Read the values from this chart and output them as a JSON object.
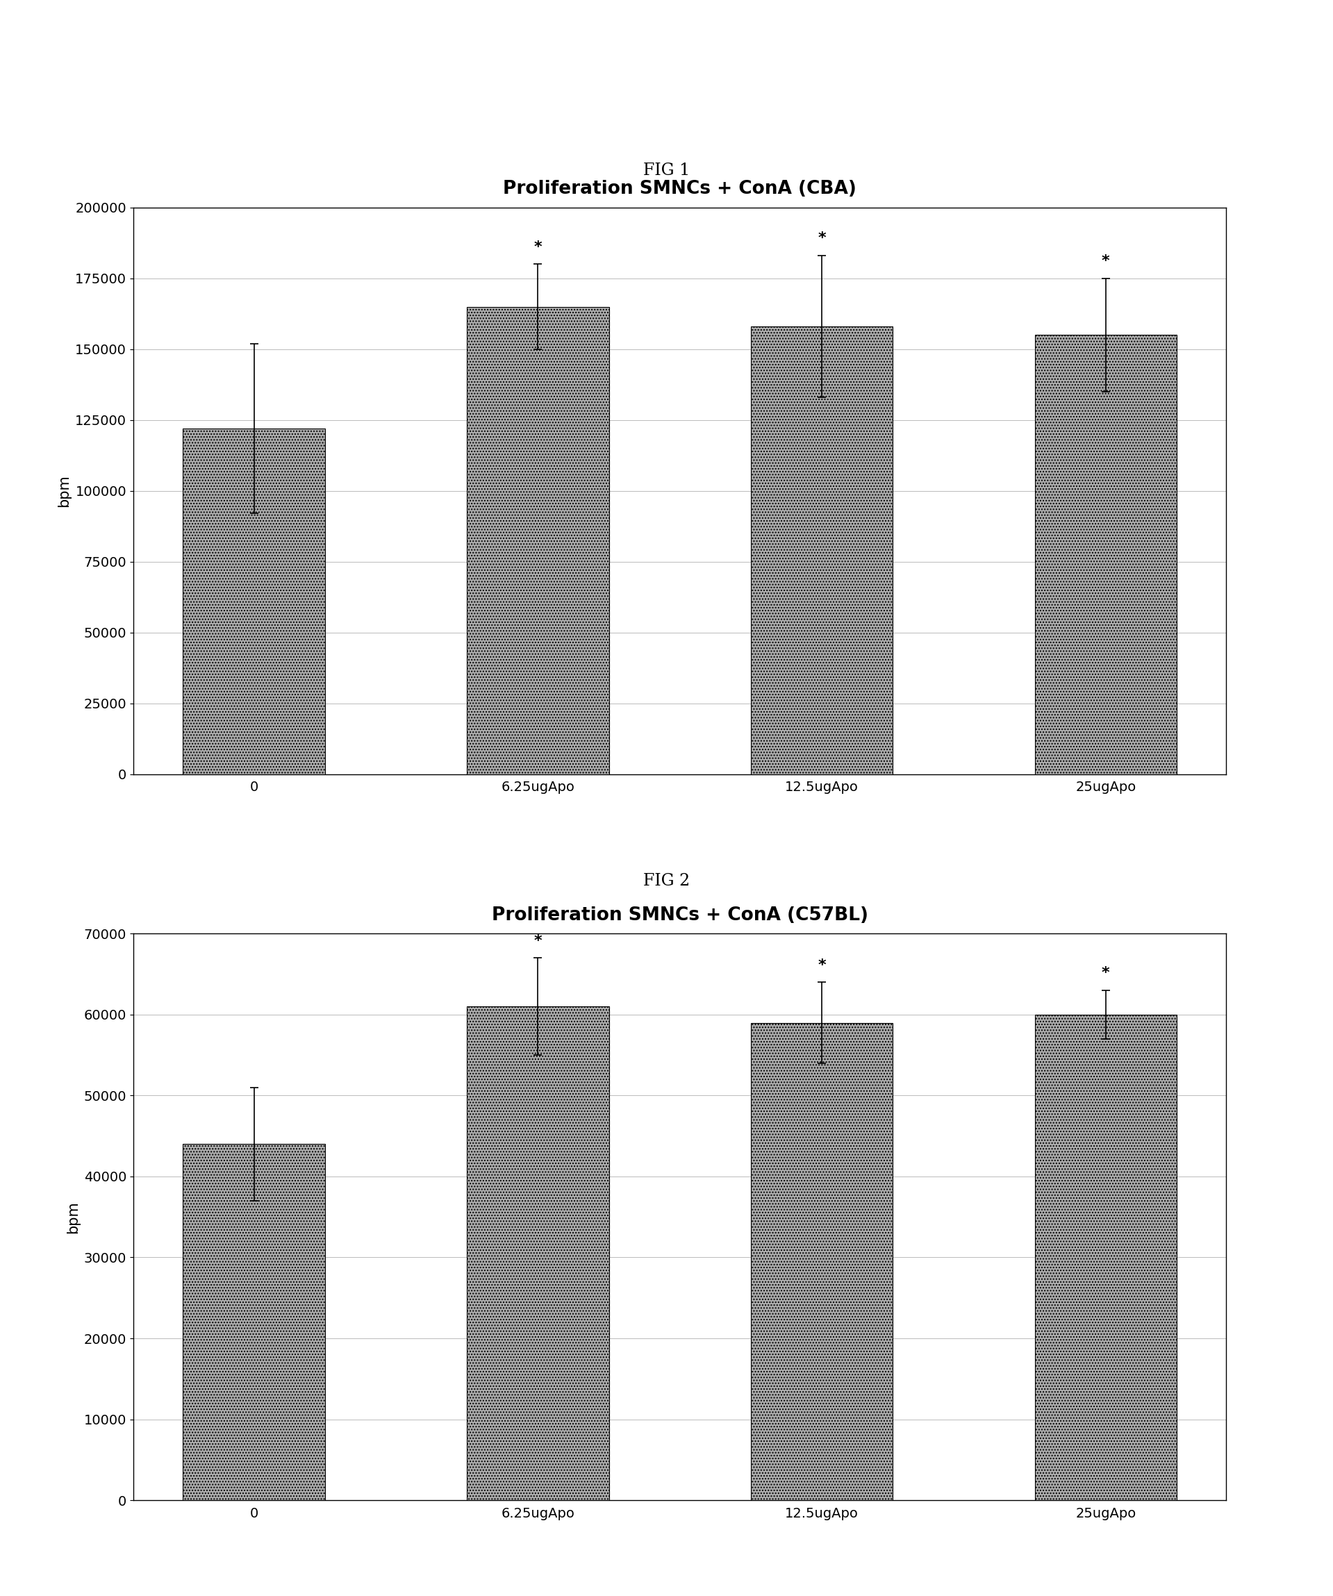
{
  "fig1": {
    "title": "Proliferation SMNCs + ConA (CBA)",
    "categories": [
      "0",
      "6.25ugApo",
      "12.5ugApo",
      "25ugApo"
    ],
    "values": [
      122000,
      165000,
      158000,
      155000
    ],
    "errors": [
      30000,
      15000,
      25000,
      20000
    ],
    "ylim": [
      0,
      200000
    ],
    "yticks": [
      0,
      25000,
      50000,
      75000,
      100000,
      125000,
      150000,
      175000,
      200000
    ],
    "ylabel": "bpm",
    "stars": [
      false,
      true,
      true,
      true
    ],
    "fig_label": "FIG 1"
  },
  "fig2": {
    "title": "Proliferation SMNCs + ConA (C57BL)",
    "categories": [
      "0",
      "6.25ugApo",
      "12.5ugApo",
      "25ugApo"
    ],
    "values": [
      44000,
      61000,
      59000,
      60000
    ],
    "errors": [
      7000,
      6000,
      5000,
      3000
    ],
    "ylim": [
      0,
      70000
    ],
    "yticks": [
      0,
      10000,
      20000,
      30000,
      40000,
      50000,
      60000,
      70000
    ],
    "ylabel": "bpm",
    "stars": [
      false,
      true,
      true,
      true
    ],
    "fig_label": "FIG 2"
  },
  "bar_color": "#aaaaaa",
  "bar_hatch": "....",
  "bar_width": 0.5,
  "bar_edge_color": "#000000",
  "background_color": "#ffffff",
  "fig_label_fontsize": 17,
  "title_fontsize": 19,
  "tick_fontsize": 14,
  "ylabel_fontsize": 15,
  "xlabel_fontsize": 14,
  "star_fontsize": 16
}
